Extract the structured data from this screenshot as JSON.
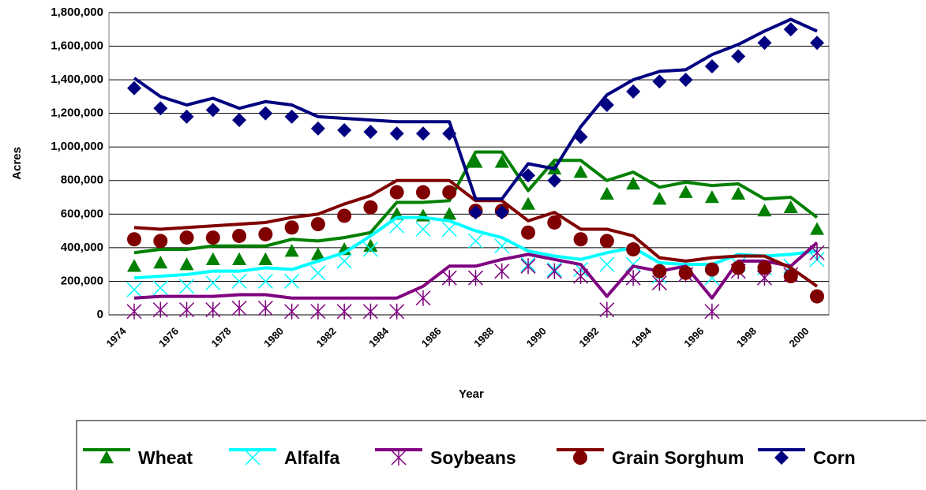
{
  "chart_data": {
    "type": "line",
    "y_label": "Acres",
    "x_label": "Year",
    "categories": [
      "1974",
      null,
      "1976",
      null,
      "1978",
      null,
      "1980",
      null,
      "1982",
      null,
      "1984",
      null,
      "1986",
      null,
      "1988",
      null,
      "1990",
      null,
      "1992",
      null,
      "1994",
      null,
      "1996",
      null,
      "1998",
      null,
      "2000"
    ],
    "ylim": [
      0,
      1800000
    ],
    "yticks": [
      0,
      {
        "value": 200000,
        "label": "200,000"
      },
      {
        "value": 400000,
        "label": "400,000"
      },
      {
        "value": 600000,
        "label": "600,000"
      },
      {
        "value": 800000,
        "label": "800,000"
      },
      {
        "value": 1000000,
        "label": "1,000,000"
      },
      {
        "value": 1200000,
        "label": "1,200,000"
      },
      {
        "value": 1400000,
        "label": "1,400,000"
      },
      {
        "value": 1600000,
        "label": "1,600,000"
      },
      {
        "value": 1800000,
        "label": "1,800,000"
      }
    ],
    "grid": true,
    "legend": "bottom",
    "series": [
      {
        "name": "Wheat",
        "color": "#008000",
        "marker": "triangle",
        "values": [
          370000,
          390000,
          390000,
          410000,
          410000,
          410000,
          450000,
          440000,
          460000,
          490000,
          670000,
          670000,
          680000,
          970000,
          970000,
          740000,
          920000,
          920000,
          800000,
          850000,
          760000,
          790000,
          770000,
          780000,
          690000,
          700000,
          580000
        ],
        "marker_values": [
          290000,
          310000,
          300000,
          330000,
          330000,
          330000,
          380000,
          360000,
          390000,
          410000,
          600000,
          590000,
          600000,
          910000,
          910000,
          660000,
          870000,
          850000,
          720000,
          780000,
          690000,
          730000,
          700000,
          720000,
          620000,
          640000,
          510000
        ]
      },
      {
        "name": "Alfalfa",
        "color": "#00ffff",
        "marker": "x",
        "values": [
          220000,
          230000,
          240000,
          260000,
          260000,
          280000,
          270000,
          320000,
          370000,
          470000,
          580000,
          580000,
          560000,
          500000,
          460000,
          380000,
          350000,
          330000,
          370000,
          400000,
          310000,
          300000,
          300000,
          360000,
          350000,
          360000,
          380000
        ],
        "marker_values": [
          150000,
          160000,
          170000,
          190000,
          200000,
          200000,
          200000,
          250000,
          320000,
          390000,
          530000,
          510000,
          510000,
          440000,
          410000,
          300000,
          270000,
          270000,
          300000,
          300000,
          230000,
          240000,
          220000,
          300000,
          280000,
          290000,
          330000
        ]
      },
      {
        "name": "Soybeans",
        "color": "#800080",
        "marker": "asterisk",
        "values": [
          100000,
          110000,
          110000,
          110000,
          120000,
          120000,
          100000,
          100000,
          100000,
          100000,
          100000,
          170000,
          290000,
          290000,
          330000,
          360000,
          330000,
          300000,
          110000,
          290000,
          260000,
          290000,
          100000,
          320000,
          320000,
          290000,
          430000
        ],
        "marker_values": [
          20000,
          30000,
          30000,
          30000,
          40000,
          40000,
          20000,
          20000,
          20000,
          20000,
          20000,
          100000,
          220000,
          220000,
          260000,
          290000,
          260000,
          230000,
          30000,
          220000,
          190000,
          240000,
          20000,
          260000,
          220000,
          240000,
          370000
        ]
      },
      {
        "name": "Grain Sorghum",
        "color": "#800000",
        "marker": "circle",
        "values": [
          520000,
          510000,
          520000,
          530000,
          540000,
          550000,
          580000,
          600000,
          660000,
          710000,
          800000,
          800000,
          800000,
          680000,
          680000,
          560000,
          610000,
          510000,
          510000,
          470000,
          340000,
          320000,
          340000,
          350000,
          350000,
          280000,
          170000
        ],
        "marker_values": [
          450000,
          440000,
          460000,
          460000,
          470000,
          480000,
          520000,
          540000,
          590000,
          640000,
          730000,
          730000,
          730000,
          620000,
          620000,
          490000,
          550000,
          450000,
          440000,
          390000,
          260000,
          250000,
          270000,
          280000,
          280000,
          230000,
          110000
        ]
      },
      {
        "name": "Corn",
        "color": "#000080",
        "marker": "diamond",
        "values": [
          1410000,
          1300000,
          1250000,
          1290000,
          1230000,
          1270000,
          1250000,
          1180000,
          1170000,
          1160000,
          1150000,
          1150000,
          1150000,
          690000,
          690000,
          900000,
          870000,
          1120000,
          1310000,
          1400000,
          1450000,
          1460000,
          1550000,
          1610000,
          1690000,
          1760000,
          1690000
        ],
        "marker_values": [
          1350000,
          1230000,
          1180000,
          1220000,
          1160000,
          1200000,
          1180000,
          1110000,
          1100000,
          1090000,
          1080000,
          1080000,
          1080000,
          610000,
          610000,
          830000,
          800000,
          1060000,
          1250000,
          1330000,
          1390000,
          1400000,
          1480000,
          1540000,
          1620000,
          1700000,
          1620000
        ]
      }
    ]
  }
}
